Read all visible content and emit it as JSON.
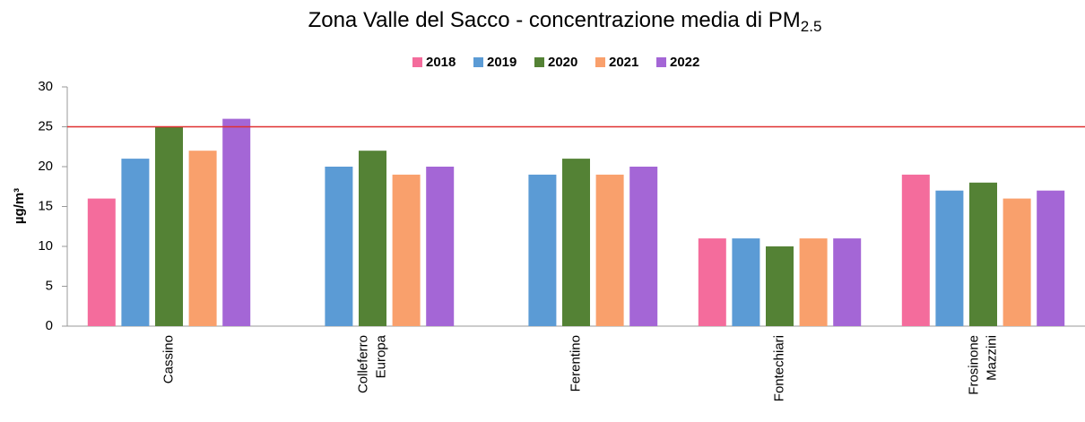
{
  "chart_data": {
    "type": "bar",
    "title": "Zona Valle del Sacco - concentrazione media di PM",
    "title_subscript": "2.5",
    "y_label": "µg/m³",
    "categories": [
      [
        "Cassino"
      ],
      [
        "Colleferro",
        "Europa"
      ],
      [
        "Ferentino"
      ],
      [
        "Fontechiari"
      ],
      [
        "Frosinone",
        "Mazzini"
      ]
    ],
    "series": [
      {
        "name": "2018",
        "color": "#f46c9c",
        "values": [
          16,
          null,
          null,
          11,
          19
        ]
      },
      {
        "name": "2019",
        "color": "#5b9bd5",
        "values": [
          21,
          20,
          19,
          11,
          17
        ]
      },
      {
        "name": "2020",
        "color": "#548235",
        "values": [
          25,
          22,
          21,
          10,
          18
        ]
      },
      {
        "name": "2021",
        "color": "#f9a06c",
        "values": [
          22,
          19,
          19,
          11,
          16
        ]
      },
      {
        "name": "2022",
        "color": "#a466d6",
        "values": [
          26,
          20,
          20,
          11,
          17
        ]
      }
    ],
    "ylim": [
      0,
      30
    ],
    "yticks": [
      0,
      5,
      10,
      15,
      20,
      25,
      30
    ],
    "reference_line": {
      "value": 25,
      "color": "#e03030"
    },
    "legend": "top"
  }
}
